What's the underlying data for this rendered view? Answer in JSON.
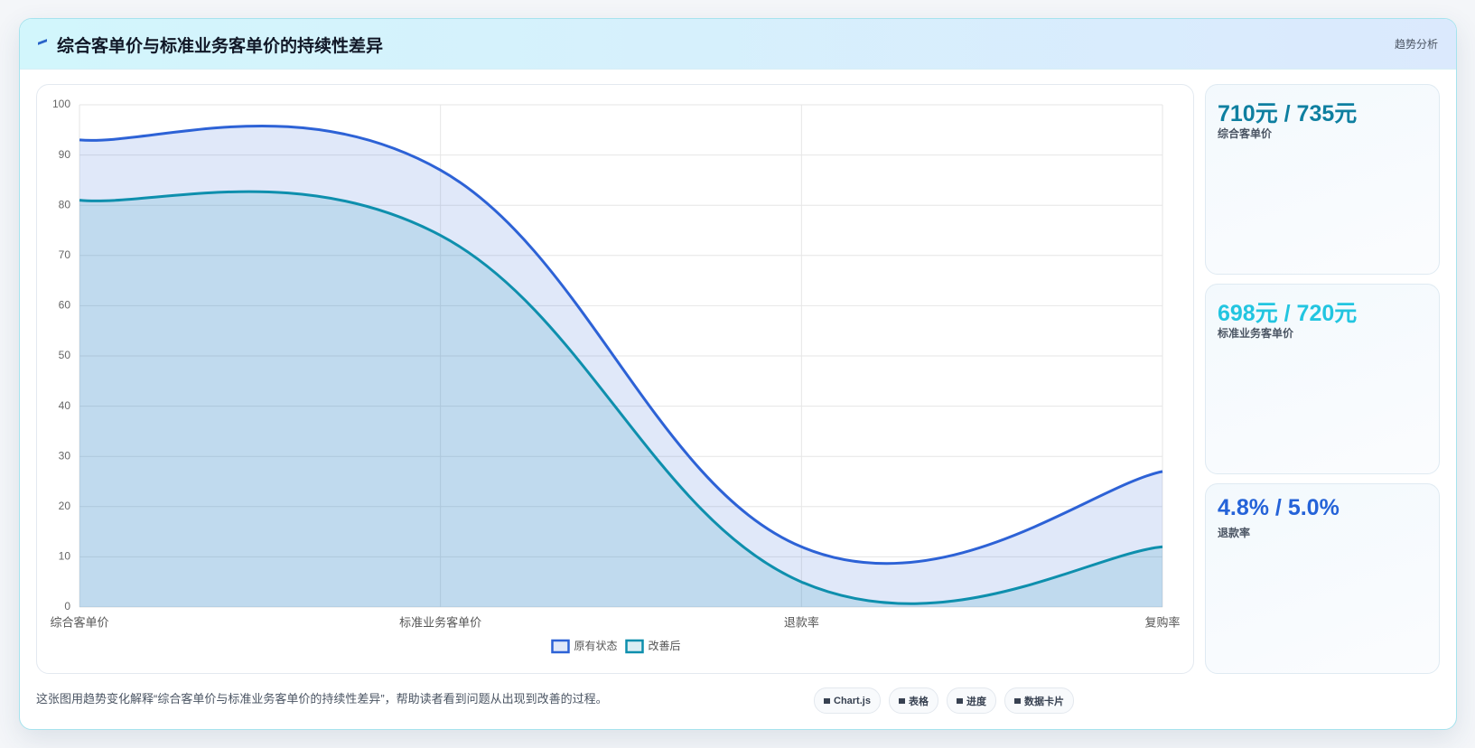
{
  "header": {
    "title": "综合客单价与标准业务客单价的持续性差异",
    "badge": "趋势分析"
  },
  "chart_data": {
    "type": "line",
    "area": true,
    "smooth": true,
    "categories": [
      "综合客单价",
      "标准业务客单价",
      "退款率",
      "复购率"
    ],
    "series": [
      {
        "name": "原有状态",
        "color": "#2d62d6",
        "values": [
          93,
          87,
          12,
          27
        ]
      },
      {
        "name": "改善后",
        "color": "#0e8fad",
        "values": [
          81,
          74,
          5,
          12
        ]
      }
    ],
    "ylim": [
      0,
      100
    ],
    "yticks": [
      0,
      10,
      20,
      30,
      40,
      50,
      60,
      70,
      80,
      90,
      100
    ],
    "grid": true,
    "legend": "bottom"
  },
  "cards": [
    {
      "value": "710元 / 735元",
      "label": "综合客单价",
      "color": "#0e7fa0"
    },
    {
      "value": "698元 / 720元",
      "label": "标准业务客单价",
      "color": "#22c5e0"
    },
    {
      "value": "4.8% / 5.0%",
      "label": "退款率",
      "color": "#2563d8"
    }
  ],
  "footer": {
    "caption": "这张图用趋势变化解释“综合客单价与标准业务客单价的持续性差异”，帮助读者看到问题从出现到改善的过程。",
    "tags": [
      "Chart.js",
      "表格",
      "进度",
      "数据卡片"
    ]
  }
}
